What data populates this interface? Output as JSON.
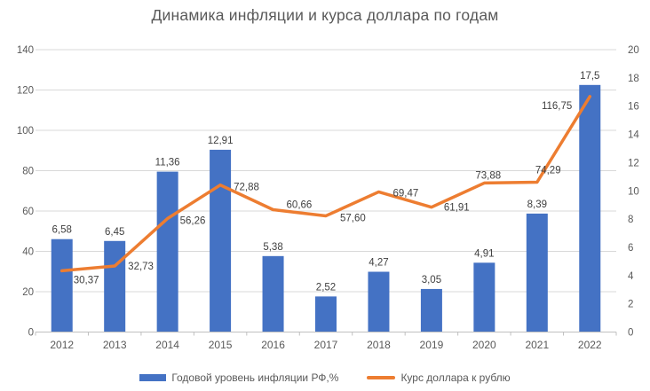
{
  "chart_data": {
    "type": "combo",
    "title": "Динамика инфляции и курса доллара по годам",
    "categories": [
      "2012",
      "2013",
      "2014",
      "2015",
      "2016",
      "2017",
      "2018",
      "2019",
      "2020",
      "2021",
      "2022"
    ],
    "series": [
      {
        "name": "Годовой уровень инфляции РФ,%",
        "type": "bar",
        "axis": "right",
        "color": "#4472C4",
        "values": [
          6.58,
          6.45,
          11.36,
          12.91,
          5.38,
          2.52,
          4.27,
          3.05,
          4.91,
          8.39,
          17.5
        ],
        "labels": [
          "6,58",
          "6,45",
          "11,36",
          "12,91",
          "5,38",
          "2,52",
          "4,27",
          "3,05",
          "4,91",
          "8,39",
          "17,5"
        ]
      },
      {
        "name": "Курс доллара к рублю",
        "type": "line",
        "axis": "left",
        "color": "#ED7D31",
        "values": [
          30.37,
          32.73,
          56.26,
          72.88,
          60.66,
          57.6,
          69.47,
          61.91,
          73.88,
          74.29,
          116.75
        ],
        "labels": [
          "30,37",
          "32,73",
          "56,26",
          "72,88",
          "60,66",
          "57,60",
          "69,47",
          "61,91",
          "73,88",
          "74,29",
          "116,75"
        ],
        "label_placement": [
          {
            "dx": 13,
            "dy": 10,
            "anchor": "start"
          },
          {
            "dx": 15,
            "dy": 0,
            "anchor": "start"
          },
          {
            "dx": 14,
            "dy": 2,
            "anchor": "start"
          },
          {
            "dx": 15,
            "dy": 2,
            "anchor": "start"
          },
          {
            "dx": 15,
            "dy": -6,
            "anchor": "start"
          },
          {
            "dx": 16,
            "dy": 2,
            "anchor": "start"
          },
          {
            "dx": 16,
            "dy": 1,
            "anchor": "start"
          },
          {
            "dx": 14,
            "dy": 0,
            "anchor": "start"
          },
          {
            "dx": -10,
            "dy": -9,
            "anchor": "start"
          },
          {
            "dx": -2,
            "dy": -14,
            "anchor": "start"
          },
          {
            "dx": -20,
            "dy": 10,
            "anchor": "end"
          }
        ]
      }
    ],
    "left_axis": {
      "min": 0,
      "max": 140,
      "step": 20,
      "ticks": [
        "0",
        "20",
        "40",
        "60",
        "80",
        "100",
        "120",
        "140"
      ]
    },
    "right_axis": {
      "min": 0,
      "max": 20,
      "step": 2,
      "ticks": [
        "0",
        "2",
        "4",
        "6",
        "8",
        "10",
        "12",
        "14",
        "16",
        "18",
        "20"
      ]
    },
    "grid": true,
    "legend_position": "bottom",
    "colors": {
      "axis_text": "#595959",
      "data_label": "#404040",
      "gridline": "#D9D9D9",
      "axis_line": "#BFBFBF",
      "background": "#FFFFFF"
    }
  }
}
